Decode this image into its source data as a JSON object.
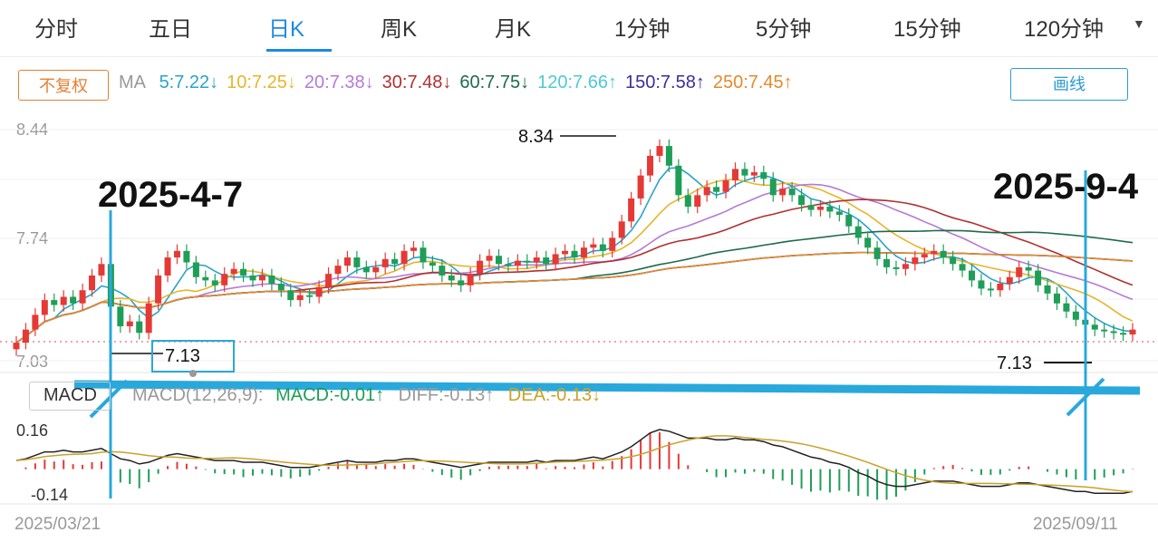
{
  "tabs": [
    "分时",
    "五日",
    "日K",
    "周K",
    "月K",
    "1分钟",
    "5分钟",
    "15分钟",
    "120分钟"
  ],
  "active_tab": "日K",
  "adjust_label": "不复权",
  "ma_label": "MA",
  "ma_items": [
    {
      "text": "5:7.22↓",
      "color": "#2aa3c9"
    },
    {
      "text": "10:7.25↓",
      "color": "#e7b52a"
    },
    {
      "text": "20:7.38↓",
      "color": "#b57ad6"
    },
    {
      "text": "30:7.48↓",
      "color": "#b03030"
    },
    {
      "text": "60:7.75↓",
      "color": "#1f6b4b"
    },
    {
      "text": "120:7.66↑",
      "color": "#4fc9d6"
    },
    {
      "text": "150:7.58↑",
      "color": "#3a2f9c"
    },
    {
      "text": "250:7.45↑",
      "color": "#e58a2a"
    }
  ],
  "draw_button": "画线",
  "y_labels": [
    "8.44",
    "7.74",
    "7.03"
  ],
  "price_high": "8.34",
  "price_low_left": "7.13",
  "price_low_right": "7.13",
  "annotations": {
    "left_date": "2025-4-7",
    "right_date": "2025-9-4"
  },
  "macd": {
    "title": "MACD",
    "params": "MACD(12,26,9):",
    "macd_value": "MACD:-0.01↑",
    "diff_value": "DIFF:-0.13↑",
    "dea_value": "DEA:-0.13↓",
    "y_labels": [
      "0.16",
      "-0.14"
    ]
  },
  "dates": {
    "start": "2025/03/21",
    "end": "2025/09/11"
  },
  "colors": {
    "up": "#e53935",
    "down": "#1e9e57",
    "accent": "#1e88e5",
    "annotation": "#29a8dc"
  },
  "chart_data": {
    "type": "candlestick",
    "x_range": [
      "2025/03/21",
      "2025/09/11"
    ],
    "ylim": [
      7.03,
      8.44
    ],
    "closes": [
      7.14,
      7.22,
      7.31,
      7.4,
      7.37,
      7.42,
      7.38,
      7.46,
      7.55,
      7.62,
      7.36,
      7.24,
      7.27,
      7.2,
      7.38,
      7.55,
      7.66,
      7.7,
      7.63,
      7.54,
      7.52,
      7.49,
      7.56,
      7.59,
      7.55,
      7.52,
      7.55,
      7.5,
      7.46,
      7.4,
      7.43,
      7.42,
      7.48,
      7.56,
      7.61,
      7.66,
      7.6,
      7.57,
      7.6,
      7.65,
      7.62,
      7.7,
      7.72,
      7.63,
      7.61,
      7.55,
      7.52,
      7.49,
      7.56,
      7.64,
      7.67,
      7.62,
      7.61,
      7.64,
      7.63,
      7.66,
      7.62,
      7.68,
      7.7,
      7.66,
      7.72,
      7.74,
      7.7,
      7.78,
      7.88,
      8.02,
      8.16,
      8.28,
      8.34,
      8.22,
      8.04,
      7.97,
      8.04,
      8.09,
      8.06,
      8.13,
      8.2,
      8.16,
      8.18,
      8.14,
      8.04,
      8.08,
      8.04,
      7.98,
      7.95,
      7.97,
      7.94,
      7.92,
      7.85,
      7.78,
      7.72,
      7.65,
      7.6,
      7.59,
      7.62,
      7.66,
      7.68,
      7.7,
      7.66,
      7.62,
      7.58,
      7.52,
      7.47,
      7.46,
      7.5,
      7.54,
      7.6,
      7.58,
      7.49,
      7.44,
      7.38,
      7.33,
      7.28,
      7.25,
      7.22,
      7.21,
      7.2,
      7.19,
      7.22
    ],
    "macd_diff": [
      0.05,
      0.06,
      0.08,
      0.1,
      0.1,
      0.11,
      0.1,
      0.1,
      0.11,
      0.12,
      0.09,
      0.06,
      0.05,
      0.03,
      0.04,
      0.06,
      0.08,
      0.09,
      0.08,
      0.07,
      0.06,
      0.05,
      0.05,
      0.05,
      0.04,
      0.04,
      0.04,
      0.03,
      0.02,
      0.01,
      0.01,
      0.01,
      0.02,
      0.03,
      0.04,
      0.05,
      0.04,
      0.04,
      0.04,
      0.05,
      0.05,
      0.06,
      0.06,
      0.05,
      0.04,
      0.03,
      0.02,
      0.01,
      0.02,
      0.03,
      0.04,
      0.04,
      0.04,
      0.04,
      0.04,
      0.05,
      0.04,
      0.05,
      0.05,
      0.05,
      0.06,
      0.07,
      0.06,
      0.08,
      0.1,
      0.13,
      0.17,
      0.21,
      0.23,
      0.22,
      0.2,
      0.18,
      0.18,
      0.18,
      0.17,
      0.17,
      0.18,
      0.17,
      0.17,
      0.16,
      0.14,
      0.13,
      0.11,
      0.09,
      0.07,
      0.06,
      0.04,
      0.03,
      0.01,
      -0.02,
      -0.04,
      -0.07,
      -0.09,
      -0.1,
      -0.1,
      -0.09,
      -0.08,
      -0.07,
      -0.07,
      -0.07,
      -0.08,
      -0.09,
      -0.1,
      -0.1,
      -0.1,
      -0.09,
      -0.08,
      -0.08,
      -0.09,
      -0.1,
      -0.11,
      -0.12,
      -0.13,
      -0.13,
      -0.14,
      -0.14,
      -0.14,
      -0.14,
      -0.13
    ]
  }
}
